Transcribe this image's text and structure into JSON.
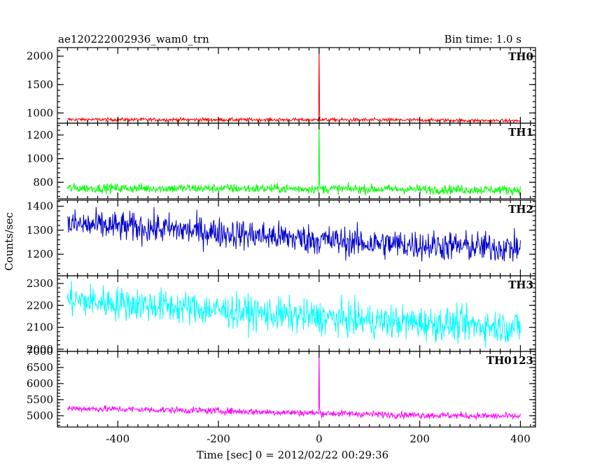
{
  "header": {
    "title": "ae120222002936_wam0_trn",
    "bin_time": "Bin time: 1.0 s"
  },
  "chart_data": {
    "type": "line",
    "title": "ae120222002936_wam0_trn",
    "subtitle": "Bin time: 1.0 s",
    "xlabel": "Time [sec] 0 = 2012/02/22 00:29:36",
    "ylabel": "Counts/sec",
    "xlim": [
      -520,
      430
    ],
    "x_ticks": [
      -400,
      -200,
      0,
      200,
      400
    ],
    "x_range_data": [
      -500,
      400
    ],
    "grid": false,
    "panels": [
      {
        "name": "TH0",
        "color": "#ff0000",
        "ylim": [
          820,
          2150
        ],
        "y_ticks": [
          1000,
          1500,
          2000
        ],
        "baseline": [
          [
            -500,
            885
          ],
          [
            -200,
            882
          ],
          [
            0,
            880
          ],
          [
            200,
            875
          ],
          [
            400,
            860
          ]
        ],
        "noise": 22,
        "spike": {
          "x": 0,
          "y": 2150
        }
      },
      {
        "name": "TH1",
        "color": "#00ff00",
        "ylim": [
          660,
          1300
        ],
        "y_ticks": [
          800,
          1000,
          1200
        ],
        "baseline": [
          [
            -500,
            750
          ],
          [
            -200,
            748
          ],
          [
            0,
            745
          ],
          [
            200,
            740
          ],
          [
            400,
            735
          ]
        ],
        "noise": 28,
        "spike": {
          "x": 0,
          "y": 1300
        }
      },
      {
        "name": "TH2",
        "color": "#0000cc",
        "ylim": [
          1110,
          1425
        ],
        "y_ticks": [
          1200,
          1300,
          1400
        ],
        "baseline": [
          [
            -500,
            1325
          ],
          [
            -300,
            1305
          ],
          [
            -100,
            1275
          ],
          [
            100,
            1245
          ],
          [
            400,
            1225
          ]
        ],
        "noise": 45
      },
      {
        "name": "TH3",
        "color": "#00ffff",
        "ylim": [
          1990,
          2335
        ],
        "y_ticks": [
          2000,
          2100,
          2200,
          2300
        ],
        "baseline": [
          [
            -500,
            2225
          ],
          [
            -300,
            2195
          ],
          [
            -100,
            2160
          ],
          [
            100,
            2130
          ],
          [
            400,
            2100
          ]
        ],
        "noise": 55
      },
      {
        "name": "TH0123",
        "color": "#ff00ff",
        "ylim": [
          4650,
          7000
        ],
        "y_ticks": [
          5000,
          5500,
          6000,
          6500,
          7000
        ],
        "baseline": [
          [
            -500,
            5230
          ],
          [
            -200,
            5150
          ],
          [
            0,
            5080
          ],
          [
            200,
            5020
          ],
          [
            400,
            4980
          ]
        ],
        "noise": 75,
        "spike": {
          "x": 0,
          "y": 7000
        }
      }
    ]
  }
}
